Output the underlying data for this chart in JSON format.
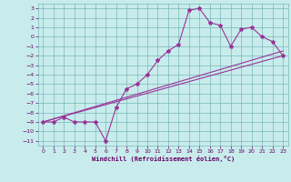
{
  "xlabel": "Windchill (Refroidissement éolien,°C)",
  "bg_color": "#c8ecec",
  "grid_color": "#7ab8b8",
  "line_color": "#993399",
  "xlim": [
    -0.5,
    23.5
  ],
  "ylim": [
    -11.5,
    3.5
  ],
  "xticks": [
    0,
    1,
    2,
    3,
    4,
    5,
    6,
    7,
    8,
    9,
    10,
    11,
    12,
    13,
    14,
    15,
    16,
    17,
    18,
    19,
    20,
    21,
    22,
    23
  ],
  "yticks": [
    3,
    2,
    1,
    0,
    -1,
    -2,
    -3,
    -4,
    -5,
    -6,
    -7,
    -8,
    -9,
    -10,
    -11
  ],
  "curve_x": [
    0,
    1,
    2,
    3,
    4,
    5,
    6,
    7,
    8,
    9,
    10,
    11,
    12,
    13,
    14,
    15,
    16,
    17,
    18,
    19,
    20,
    21,
    22,
    23
  ],
  "curve_y": [
    -9.0,
    -9.0,
    -8.5,
    -9.0,
    -9.0,
    -9.0,
    -11.0,
    -7.5,
    -5.5,
    -5.0,
    -4.0,
    -2.5,
    -1.5,
    -0.8,
    2.8,
    3.0,
    1.5,
    1.2,
    -1.0,
    0.8,
    1.0,
    0.0,
    -0.5,
    -2.0
  ],
  "line1_x": [
    0,
    23
  ],
  "line1_y": [
    -9.0,
    -2.0
  ],
  "line2_x": [
    0,
    23
  ],
  "line2_y": [
    -9.0,
    -1.5
  ]
}
